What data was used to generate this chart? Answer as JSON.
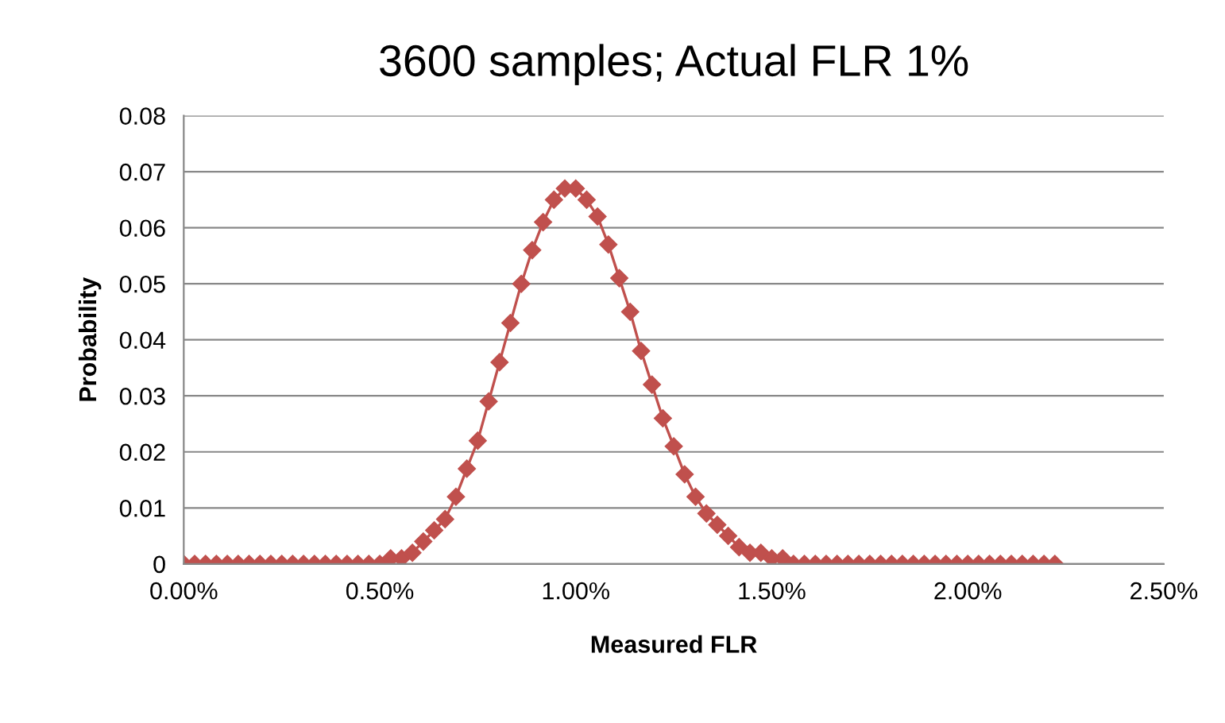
{
  "chart_data": {
    "type": "line",
    "title": "3600 samples; Actual FLR 1%",
    "xlabel": "Measured FLR",
    "ylabel": "Probability",
    "x": [
      0,
      0.0278,
      0.0556,
      0.0833,
      0.1111,
      0.1389,
      0.1667,
      0.1944,
      0.2222,
      0.25,
      0.2778,
      0.3056,
      0.3333,
      0.3611,
      0.3889,
      0.4167,
      0.4444,
      0.4722,
      0.5,
      0.5278,
      0.5556,
      0.5833,
      0.6111,
      0.6389,
      0.6667,
      0.6944,
      0.7222,
      0.75,
      0.7778,
      0.8056,
      0.8333,
      0.8611,
      0.8889,
      0.9167,
      0.9444,
      0.9722,
      1,
      1.0278,
      1.0556,
      1.0833,
      1.1111,
      1.1389,
      1.1667,
      1.1944,
      1.2222,
      1.25,
      1.2778,
      1.3056,
      1.3333,
      1.3611,
      1.3889,
      1.4167,
      1.4444,
      1.4722,
      1.5,
      1.5278,
      1.5556,
      1.5833,
      1.6111,
      1.6389,
      1.6667,
      1.6944,
      1.7222,
      1.75,
      1.7778,
      1.8056,
      1.8333,
      1.8611,
      1.8889,
      1.9167,
      1.9444,
      1.9722,
      2,
      2.0278,
      2.0556,
      2.0833,
      2.1111,
      2.1389,
      2.1667,
      2.1944,
      2.2222
    ],
    "series": [
      {
        "color": "#c0504d",
        "values": [
          0,
          0,
          0,
          0,
          0,
          0,
          0,
          0,
          0,
          0,
          0,
          0,
          0,
          0,
          0,
          0,
          0,
          0,
          0,
          0.001,
          0.001,
          0.002,
          0.004,
          0.006,
          0.008,
          0.012,
          0.017,
          0.022,
          0.029,
          0.036,
          0.043,
          0.05,
          0.056,
          0.061,
          0.065,
          0.067,
          0.067,
          0.065,
          0.062,
          0.057,
          0.051,
          0.045,
          0.038,
          0.032,
          0.026,
          0.021,
          0.016,
          0.012,
          0.009,
          0.007,
          0.005,
          0.003,
          0.002,
          0.002,
          0.001,
          0.001,
          0,
          0,
          0,
          0,
          0,
          0,
          0,
          0,
          0,
          0,
          0,
          0,
          0,
          0,
          0,
          0,
          0,
          0,
          0,
          0,
          0,
          0,
          0,
          0,
          0
        ]
      }
    ],
    "xlim": [
      0,
      2.5
    ],
    "xticks": [
      {
        "value": 0,
        "label": "0.00%"
      },
      {
        "value": 0.5,
        "label": "0.50%"
      },
      {
        "value": 1,
        "label": "1.00%"
      },
      {
        "value": 1.5,
        "label": "1.50%"
      },
      {
        "value": 2,
        "label": "2.00%"
      },
      {
        "value": 2.5,
        "label": "2.50%"
      }
    ],
    "ylim": [
      0,
      0.08
    ],
    "yticks": [
      0,
      0.01,
      0.02,
      0.03,
      0.04,
      0.05,
      0.06,
      0.07,
      0.08
    ],
    "grid": "y",
    "marker": "diamond",
    "line_style": "solid",
    "legend": false
  }
}
